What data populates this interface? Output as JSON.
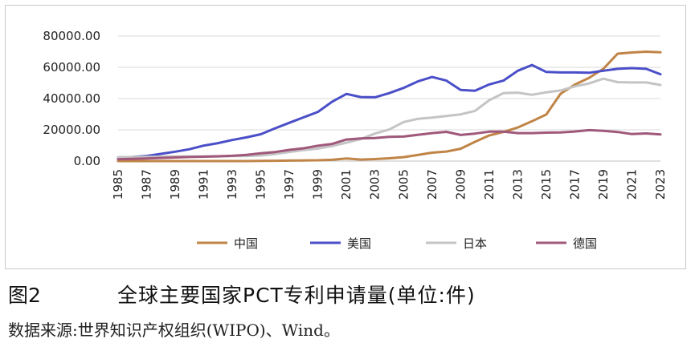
{
  "chart_data": {
    "type": "line",
    "title": "",
    "xlabel": "",
    "ylabel": "",
    "ylim": [
      0,
      80000
    ],
    "yticks": [
      "0.00",
      "20000.00",
      "40000.00",
      "60000.00",
      "80000.00"
    ],
    "ytick_values": [
      0,
      20000,
      40000,
      60000,
      80000
    ],
    "categories": [
      "1985",
      "1986",
      "1987",
      "1988",
      "1989",
      "1990",
      "1991",
      "1992",
      "1993",
      "1994",
      "1995",
      "1996",
      "1997",
      "1998",
      "1999",
      "2000",
      "2001",
      "2002",
      "2003",
      "2004",
      "2005",
      "2006",
      "2007",
      "2008",
      "2009",
      "2010",
      "2011",
      "2012",
      "2013",
      "2014",
      "2015",
      "2016",
      "2017",
      "2018",
      "2019",
      "2020",
      "2021",
      "2022",
      "2023"
    ],
    "xtick_labels": [
      "1985",
      "1987",
      "1989",
      "1991",
      "1993",
      "1995",
      "1997",
      "1999",
      "2001",
      "2003",
      "2005",
      "2007",
      "2009",
      "2011",
      "2013",
      "2015",
      "2017",
      "2019",
      "2021",
      "2023"
    ],
    "grid": true,
    "legend_position": "bottom",
    "series": [
      {
        "name": "中国",
        "color": "#c08447",
        "values": [
          0,
          0,
          0,
          0,
          0,
          0,
          0,
          0,
          0,
          0,
          100,
          200,
          300,
          400,
          500,
          800,
          1700,
          1000,
          1300,
          1800,
          2500,
          3900,
          5400,
          6100,
          7900,
          12300,
          16400,
          18600,
          21500,
          25500,
          29800,
          43100,
          48900,
          53300,
          59000,
          68700,
          69500,
          70000,
          69600
        ]
      },
      {
        "name": "美国",
        "color": "#4a4fc8",
        "values": [
          2200,
          2600,
          3300,
          4600,
          6000,
          7600,
          9900,
          11500,
          13500,
          15200,
          17200,
          21000,
          24500,
          28000,
          31500,
          38000,
          43000,
          41000,
          40800,
          43500,
          46800,
          51000,
          53800,
          51500,
          45500,
          45000,
          49000,
          51500,
          57800,
          61500,
          57000,
          56700,
          56700,
          56500,
          57800,
          59000,
          59500,
          59000,
          55600
        ]
      },
      {
        "name": "日本",
        "color": "#c4c4c4",
        "values": [
          2500,
          2600,
          2700,
          2800,
          2900,
          3000,
          3000,
          3000,
          3200,
          3300,
          3600,
          4500,
          5800,
          7000,
          8000,
          9600,
          11800,
          14100,
          17600,
          20200,
          25000,
          27000,
          27800,
          28800,
          29900,
          32100,
          38900,
          43500,
          43800,
          42400,
          44000,
          45200,
          47800,
          49700,
          52700,
          50500,
          50300,
          50300,
          48700
        ]
      },
      {
        "name": "德国",
        "color": "#a0587a",
        "values": [
          1200,
          1400,
          1700,
          2000,
          2300,
          2600,
          2800,
          3100,
          3400,
          4000,
          5000,
          5800,
          7200,
          8200,
          9800,
          11000,
          13800,
          14500,
          14700,
          15500,
          15700,
          16800,
          17900,
          18700,
          16700,
          17600,
          18800,
          18800,
          17900,
          17900,
          18200,
          18300,
          18900,
          19800,
          19400,
          18600,
          17300,
          17700,
          17000
        ]
      }
    ]
  },
  "caption": {
    "figure_number": "图2",
    "title": "全球主要国家PCT专利申请量(单位:件)"
  },
  "source": "数据来源:世界知识产权组织(WIPO)、Wind。"
}
